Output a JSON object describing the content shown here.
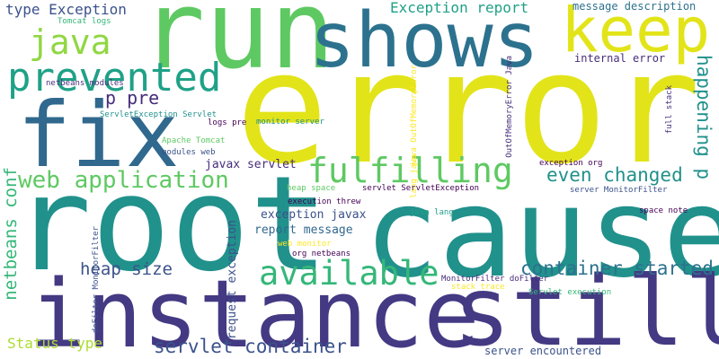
{
  "words": [
    {
      "id": "error",
      "text": "error",
      "color": "#e2e419"
    },
    {
      "id": "root",
      "text": "root",
      "color": "#21918c"
    },
    {
      "id": "cause",
      "text": "cause",
      "color": "#21918c"
    },
    {
      "id": "instance",
      "text": "instance",
      "color": "#443983"
    },
    {
      "id": "still",
      "text": "still",
      "color": "#443983"
    },
    {
      "id": "fix",
      "text": "fix",
      "color": "#31688e"
    },
    {
      "id": "run",
      "text": "run",
      "color": "#5ec962"
    },
    {
      "id": "shows",
      "text": "shows",
      "color": "#2c728e"
    },
    {
      "id": "keep",
      "text": "keep",
      "color": "#e2e419"
    },
    {
      "id": "prevented",
      "text": "prevented",
      "color": "#1fa187"
    },
    {
      "id": "java",
      "text": "java",
      "color": "#90d743"
    },
    {
      "id": "fulfilling",
      "text": "fulfilling",
      "color": "#5ec962"
    },
    {
      "id": "available",
      "text": "available",
      "color": "#35b779"
    },
    {
      "id": "web-application",
      "text": "web application",
      "color": "#5ec962"
    },
    {
      "id": "container-started",
      "text": "container started",
      "color": "#2c728e"
    },
    {
      "id": "servlet-container",
      "text": "servlet container",
      "color": "#3b528b"
    },
    {
      "id": "even-changed",
      "text": "even changed",
      "color": "#21918c"
    },
    {
      "id": "happening-p",
      "text": "happening p",
      "color": "#21918c"
    },
    {
      "id": "heap-size",
      "text": "heap size",
      "color": "#3b528b"
    },
    {
      "id": "netbeans-conf",
      "text": "netbeans conf",
      "color": "#35b779"
    },
    {
      "id": "p-pre",
      "text": "p pre",
      "color": "#472d7b"
    },
    {
      "id": "type-exception",
      "text": "type Exception",
      "color": "#3b528b"
    },
    {
      "id": "exception-report",
      "text": "Exception report",
      "color": "#1fa187"
    },
    {
      "id": "status-type",
      "text": "Status type",
      "color": "#addc30"
    },
    {
      "id": "report-message",
      "text": "report message",
      "color": "#31688e"
    },
    {
      "id": "exception-javax",
      "text": "exception javax",
      "color": "#3b528b"
    },
    {
      "id": "javax-servlet",
      "text": "javax servlet",
      "color": "#472d7b"
    },
    {
      "id": "request-exception",
      "text": "request exception",
      "color": "#3b528b"
    },
    {
      "id": "server-encountered",
      "text": "server encountered",
      "color": "#3b528b"
    },
    {
      "id": "message-description",
      "text": "message description",
      "color": "#2c728e"
    },
    {
      "id": "internal-error",
      "text": "internal error",
      "color": "#472d7b"
    },
    {
      "id": "tomcat-logs",
      "text": "Tomcat logs",
      "color": "#35b779"
    },
    {
      "id": "netbeans-modules",
      "text": "netbeans modules",
      "color": "#472d7b"
    },
    {
      "id": "servletexception-servlet",
      "text": "ServletException Servlet",
      "color": "#21918c"
    },
    {
      "id": "logs-pre",
      "text": "logs pre",
      "color": "#440154"
    },
    {
      "id": "apache-tomcat",
      "text": "Apache Tomcat",
      "color": "#5ec962"
    },
    {
      "id": "modules-web",
      "text": "modules web",
      "color": "#3b528b"
    },
    {
      "id": "monitor-server",
      "text": "monitor server",
      "color": "#21918c"
    },
    {
      "id": "outofmemoryerror-java",
      "text": "OutOfMemoryError Java",
      "color": "#472d7b"
    },
    {
      "id": "java-outofmemoryerror",
      "text": "java OutOfMemoryError",
      "color": "#fde725"
    },
    {
      "id": "lang-java",
      "text": "lang java",
      "color": "#fde725"
    },
    {
      "id": "full-stack",
      "text": "full stack",
      "color": "#472d7b"
    },
    {
      "id": "exception-org",
      "text": "exception org",
      "color": "#440154"
    },
    {
      "id": "server-monitorfilter",
      "text": "server MonitorFilter",
      "color": "#3b528b"
    },
    {
      "id": "space-note",
      "text": "space note",
      "color": "#440154"
    },
    {
      "id": "heap-space",
      "text": "heap space",
      "color": "#5ec962"
    },
    {
      "id": "servlet-servletexception",
      "text": "servlet ServletException",
      "color": "#440154"
    },
    {
      "id": "execution-threw",
      "text": "execution threw",
      "color": "#440154"
    },
    {
      "id": "java-lang",
      "text": "java lang",
      "color": "#1fa187"
    },
    {
      "id": "web-monitor",
      "text": "web monitor",
      "color": "#fde725"
    },
    {
      "id": "org-netbeans",
      "text": "org netbeans",
      "color": "#440154"
    },
    {
      "id": "dofilter-monitorfilter",
      "text": "doFilter MonitorFilter",
      "color": "#3b528b"
    },
    {
      "id": "monitorfilter-dofilter",
      "text": "MonitorFilter doFilter",
      "color": "#472d7b"
    },
    {
      "id": "stack-trace",
      "text": "stack trace",
      "color": "#fde725"
    },
    {
      "id": "servlet-execution",
      "text": "Servlet execution",
      "color": "#35b779"
    }
  ]
}
